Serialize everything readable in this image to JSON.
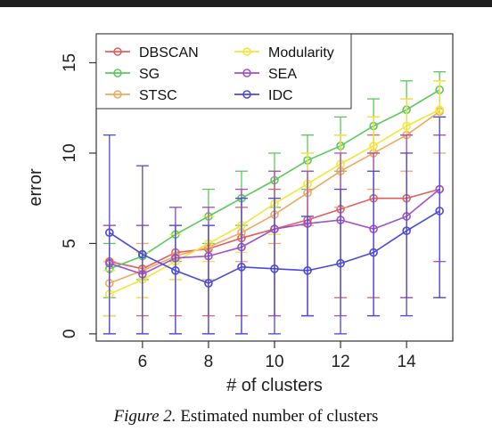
{
  "caption": {
    "figure": "Figure 2.",
    "text": "Estimated number of clusters"
  },
  "chart_data": {
    "type": "line",
    "xlabel": "# of clusters",
    "ylabel": "error",
    "xlim": [
      4.6,
      15.4
    ],
    "ylim": [
      -0.4,
      16.6
    ],
    "xticks": [
      6,
      8,
      10,
      12,
      14
    ],
    "yticks": [
      0,
      5,
      10,
      15
    ],
    "legend_position": "top-left",
    "x": [
      5,
      6,
      7,
      8,
      9,
      10,
      11,
      12,
      13,
      14,
      15
    ],
    "series": [
      {
        "name": "DBSCAN",
        "color": "#e06060",
        "values": [
          4.0,
          3.6,
          4.5,
          4.7,
          5.3,
          5.8,
          6.3,
          6.9,
          7.5,
          7.5,
          8.0
        ],
        "err_low": [
          1.0,
          1.0,
          1.0,
          1.0,
          1.0,
          1.0,
          1.0,
          2.0,
          2.0,
          2.0,
          2.0
        ],
        "err_high": [
          6.0,
          6.0,
          6.0,
          6.0,
          7.0,
          8.0,
          9.0,
          11.0,
          11.0,
          11.0,
          11.0
        ]
      },
      {
        "name": "SG",
        "color": "#5cc85c",
        "values": [
          3.6,
          4.3,
          5.5,
          6.5,
          7.5,
          8.5,
          9.6,
          10.4,
          11.5,
          12.4,
          13.5
        ],
        "err_low": [
          2.0,
          3.0,
          4.0,
          5.0,
          6.0,
          7.0,
          8.0,
          9.0,
          10.0,
          11.0,
          12.0
        ],
        "err_high": [
          5.0,
          6.0,
          7.0,
          8.0,
          9.0,
          10.0,
          11.0,
          12.0,
          13.0,
          14.0,
          14.5
        ]
      },
      {
        "name": "STSC",
        "color": "#f0a860",
        "values": [
          2.8,
          3.5,
          4.3,
          4.8,
          5.6,
          6.6,
          7.8,
          9.0,
          10.0,
          11.0,
          12.3
        ],
        "err_low": [
          1.0,
          2.0,
          3.0,
          3.0,
          4.0,
          5.0,
          6.0,
          7.0,
          8.0,
          9.0,
          10.0
        ],
        "err_high": [
          4.0,
          5.0,
          6.0,
          7.0,
          8.0,
          9.0,
          10.0,
          11.0,
          12.0,
          13.0,
          14.0
        ]
      },
      {
        "name": "Modularity",
        "color": "#f2e63a",
        "values": [
          2.2,
          3.0,
          4.0,
          5.0,
          6.0,
          7.2,
          8.3,
          9.4,
          10.4,
          11.5,
          12.4
        ],
        "err_low": [
          1.0,
          2.0,
          3.0,
          4.0,
          4.5,
          5.5,
          6.5,
          8.0,
          9.0,
          10.0,
          11.0
        ],
        "err_high": [
          3.5,
          4.5,
          5.5,
          6.5,
          7.5,
          9.0,
          10.0,
          11.0,
          12.0,
          13.0,
          14.0
        ]
      },
      {
        "name": "SEA",
        "color": "#a050c8",
        "values": [
          3.9,
          3.3,
          4.2,
          4.3,
          4.8,
          5.8,
          6.1,
          6.3,
          5.8,
          6.5,
          8.0
        ],
        "err_low": [
          0.0,
          0.0,
          0.0,
          0.0,
          0.0,
          1.0,
          1.0,
          1.0,
          1.0,
          2.0,
          4.0
        ],
        "err_high": [
          6.0,
          6.0,
          7.0,
          7.0,
          8.0,
          9.0,
          9.0,
          10.0,
          10.0,
          11.0,
          11.0
        ]
      },
      {
        "name": "IDC",
        "color": "#4a4ad8",
        "values": [
          5.6,
          4.4,
          3.5,
          2.8,
          3.7,
          3.6,
          3.5,
          3.9,
          4.5,
          5.7,
          6.8
        ],
        "err_low": [
          0.0,
          0.0,
          0.0,
          0.0,
          0.0,
          0.0,
          1.0,
          0.0,
          1.0,
          1.0,
          2.0
        ],
        "err_high": [
          11.0,
          9.3,
          6.0,
          6.0,
          7.5,
          7.5,
          6.5,
          8.0,
          9.0,
          10.0,
          12.0
        ]
      }
    ]
  }
}
